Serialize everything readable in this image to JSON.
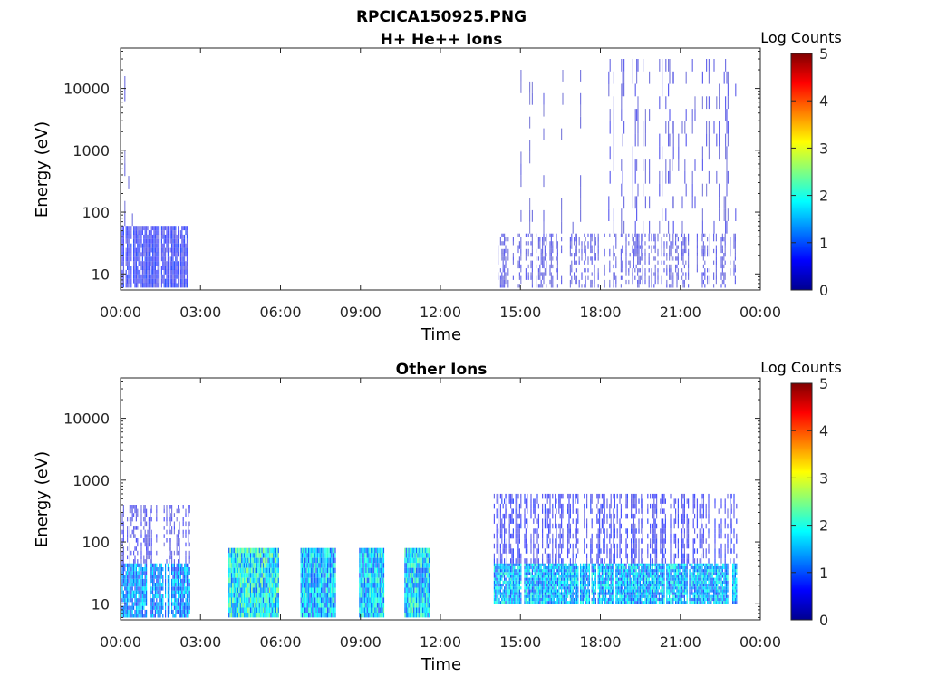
{
  "figure": {
    "title": "RPCICA150925.PNG"
  },
  "colorbar": {
    "label": "Log Counts",
    "ticks": [
      "0",
      "1",
      "2",
      "3",
      "4",
      "5"
    ],
    "range": [
      0,
      5
    ],
    "colormap": "jet",
    "colors": [
      "#00008f",
      "#0000ff",
      "#0080ff",
      "#00ffff",
      "#80ff80",
      "#ffff00",
      "#ff8000",
      "#ff0000",
      "#800000"
    ]
  },
  "chart_data": [
    {
      "type": "heatmap",
      "title": "H+ He++ Ions",
      "xlabel": "Time",
      "ylabel": "Energy (eV)",
      "xlim": [
        "00:00",
        "24:00"
      ],
      "x_ticks": [
        "00:00",
        "03:00",
        "06:00",
        "09:00",
        "12:00",
        "15:00",
        "18:00",
        "21:00",
        "00:00"
      ],
      "ylim": [
        5.5,
        45000
      ],
      "yscale": "log",
      "y_ticks": [
        "10",
        "100",
        "1000",
        "10000"
      ],
      "y_tick_values": [
        10,
        100,
        1000,
        10000
      ],
      "colorbar_label": "Log Counts",
      "clim": [
        0,
        5
      ],
      "bursts": [
        {
          "t_start": 0.0,
          "t_end": 2.55,
          "e_low": 6,
          "e_high": 60,
          "level": 0.6,
          "density": 0.9
        },
        {
          "t_start": 0.0,
          "t_end": 0.8,
          "e_low": 60,
          "e_high": 40000,
          "level": 0.25,
          "density": 0.1
        },
        {
          "t_start": 14.0,
          "t_end": 23.1,
          "e_low": 6,
          "e_high": 45,
          "level": 0.35,
          "density": 0.55
        },
        {
          "t_start": 15.0,
          "t_end": 17.5,
          "e_low": 45,
          "e_high": 20000,
          "level": 0.25,
          "density": 0.12
        },
        {
          "t_start": 18.2,
          "t_end": 23.1,
          "e_low": 45,
          "e_high": 30000,
          "level": 0.35,
          "density": 0.3
        }
      ]
    },
    {
      "type": "heatmap",
      "title": "Other Ions",
      "xlabel": "Time",
      "ylabel": "Energy (eV)",
      "xlim": [
        "00:00",
        "24:00"
      ],
      "x_ticks": [
        "00:00",
        "03:00",
        "06:00",
        "09:00",
        "12:00",
        "15:00",
        "18:00",
        "21:00",
        "00:00"
      ],
      "ylim": [
        5.5,
        45000
      ],
      "yscale": "log",
      "y_ticks": [
        "10",
        "100",
        "1000",
        "10000"
      ],
      "y_tick_values": [
        10,
        100,
        1000,
        10000
      ],
      "colorbar_label": "Log Counts",
      "clim": [
        0,
        5
      ],
      "bursts": [
        {
          "t_start": 0.0,
          "t_end": 2.6,
          "e_low": 6,
          "e_high": 45,
          "level": 1.3,
          "density": 0.9
        },
        {
          "t_start": 0.0,
          "t_end": 2.6,
          "e_low": 45,
          "e_high": 400,
          "level": 0.45,
          "density": 0.5
        },
        {
          "t_start": 4.05,
          "t_end": 5.95,
          "e_low": 6,
          "e_high": 80,
          "level": 1.8,
          "density": 1.0
        },
        {
          "t_start": 6.75,
          "t_end": 8.05,
          "e_low": 6,
          "e_high": 80,
          "level": 1.55,
          "density": 1.0
        },
        {
          "t_start": 8.95,
          "t_end": 9.9,
          "e_low": 6,
          "e_high": 80,
          "level": 1.6,
          "density": 1.0
        },
        {
          "t_start": 10.65,
          "t_end": 11.6,
          "e_low": 6,
          "e_high": 80,
          "level": 1.7,
          "density": 1.0
        },
        {
          "t_start": 14.0,
          "t_end": 23.1,
          "e_low": 10,
          "e_high": 45,
          "level": 1.5,
          "density": 0.95
        },
        {
          "t_start": 14.0,
          "t_end": 23.1,
          "e_low": 45,
          "e_high": 600,
          "level": 0.55,
          "density": 0.6
        }
      ]
    }
  ]
}
